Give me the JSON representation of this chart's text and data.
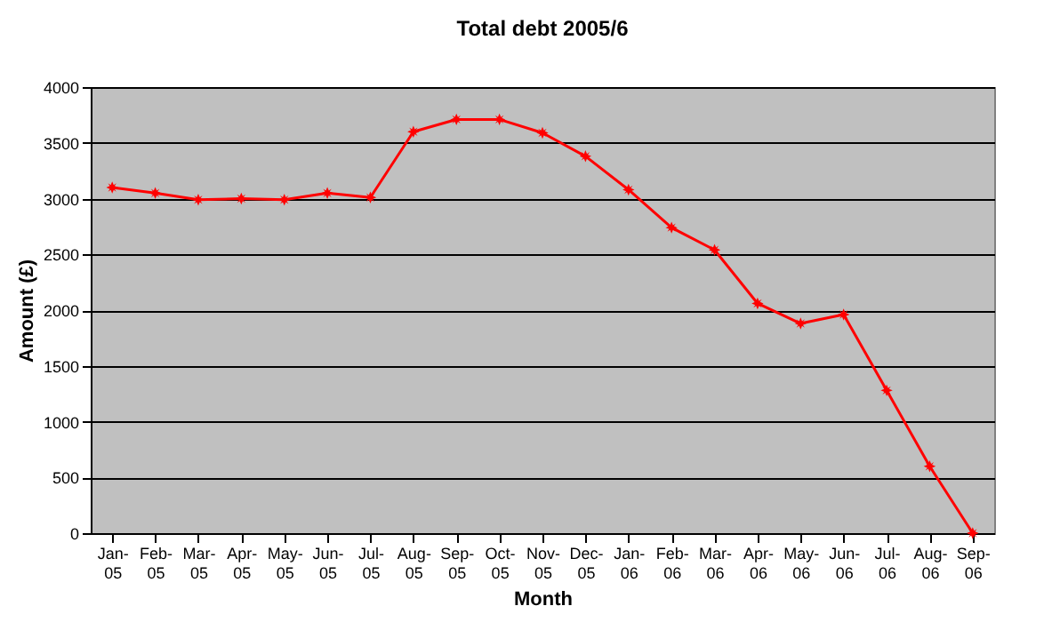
{
  "chart_data": {
    "type": "line",
    "title": "Total debt 2005/6",
    "xlabel": "Month",
    "ylabel": "Amount (£)",
    "categories": [
      "Jan-05",
      "Feb-05",
      "Mar-05",
      "Apr-05",
      "May-05",
      "Jun-05",
      "Jul-05",
      "Aug-05",
      "Sep-05",
      "Oct-05",
      "Nov-05",
      "Dec-05",
      "Jan-06",
      "Feb-06",
      "Mar-06",
      "Apr-06",
      "May-06",
      "Jun-06",
      "Jul-06",
      "Aug-06",
      "Sep-06"
    ],
    "series": [
      {
        "color": "#ff0000",
        "values": [
          3100,
          3050,
          2990,
          3000,
          2990,
          3050,
          3010,
          3600,
          3710,
          3710,
          3590,
          3380,
          3080,
          2740,
          2540,
          2060,
          1880,
          1960,
          1280,
          600,
          0
        ]
      }
    ],
    "ylim": [
      0,
      4000
    ],
    "yticks": [
      0,
      500,
      1000,
      1500,
      2000,
      2500,
      3000,
      3500,
      4000
    ],
    "grid": "y",
    "marker": "star",
    "line_style": "solid"
  }
}
